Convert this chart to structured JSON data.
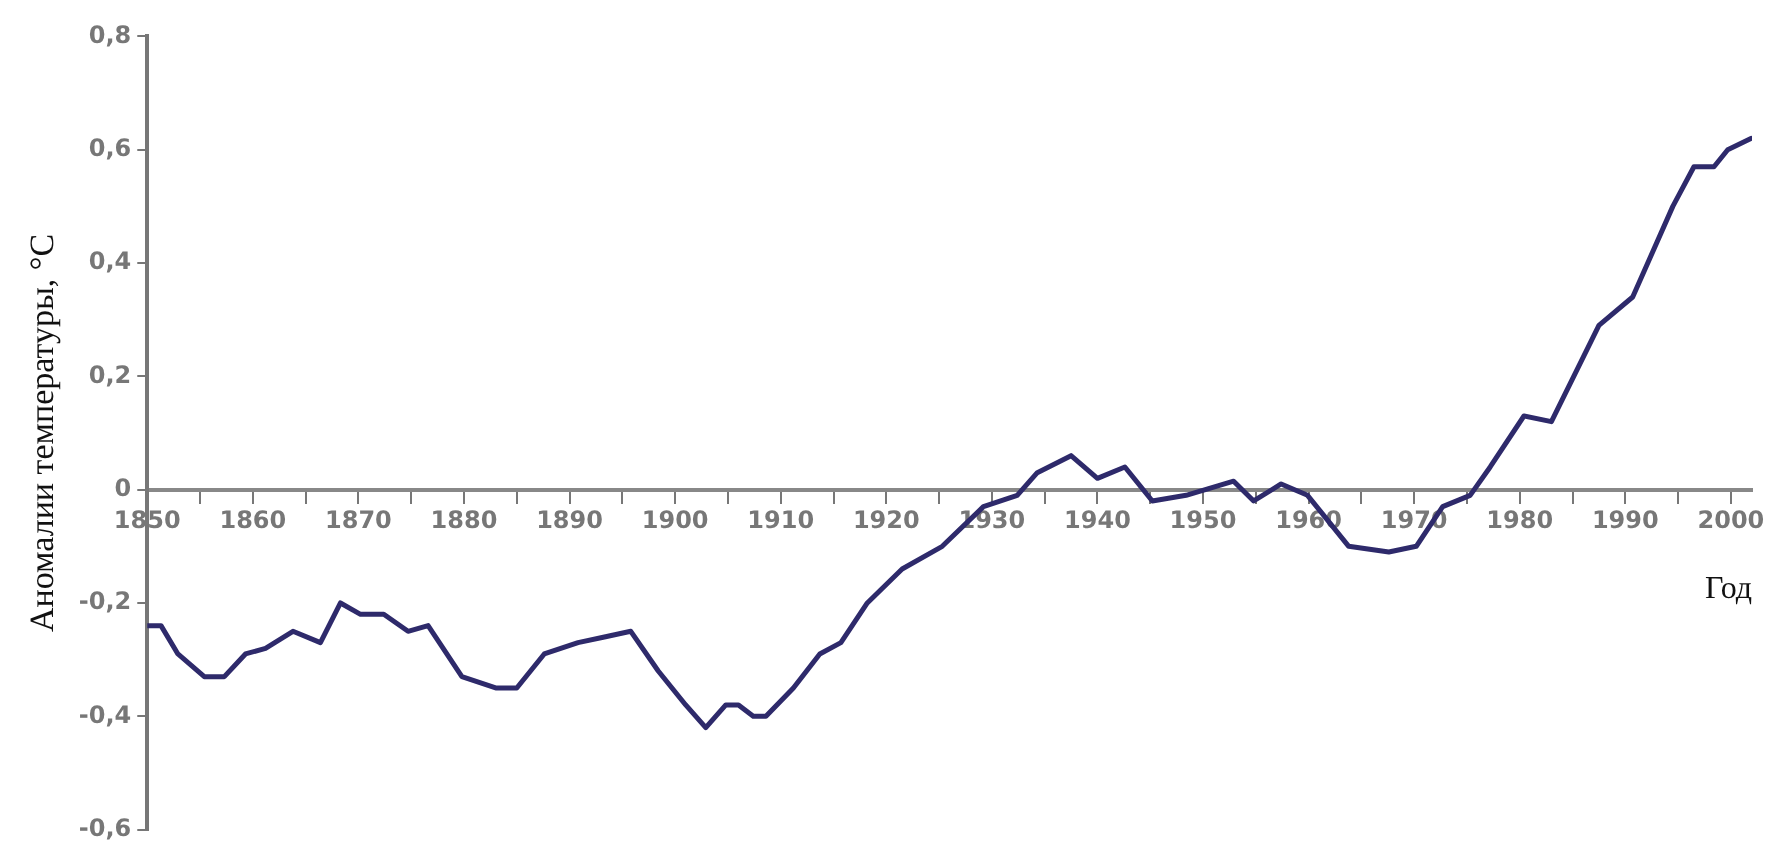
{
  "chart_data": {
    "type": "line",
    "xlabel": "Год",
    "ylabel": "Аномалии температуры, °C",
    "xlim": [
      1850,
      2002
    ],
    "xticks": [
      1850,
      {
        "value": 1855,
        "label": null
      },
      1860,
      {
        "value": 1865,
        "label": null
      },
      1870,
      {
        "value": 1875,
        "label": null
      },
      1880,
      {
        "value": 1885,
        "label": null
      },
      1890,
      {
        "value": 1895,
        "label": null
      },
      1900,
      {
        "value": 1905,
        "label": null
      },
      1910,
      {
        "value": 1915,
        "label": null
      },
      1920,
      {
        "value": 1925,
        "label": null
      },
      1930,
      {
        "value": 1935,
        "label": null
      },
      1940,
      {
        "value": 1945,
        "label": null
      },
      1950,
      {
        "value": 1955,
        "label": null
      },
      1960,
      {
        "value": 1965,
        "label": null
      },
      1970,
      {
        "value": 1975,
        "label": null
      },
      1980,
      {
        "value": 1985,
        "label": null
      },
      1990,
      {
        "value": 1995,
        "label": null
      },
      2000
    ],
    "ylim": [
      -0.6,
      0.8
    ],
    "yticks": [
      {
        "value": -0.6,
        "label": "-0,6"
      },
      {
        "value": -0.4,
        "label": "-0,4"
      },
      {
        "value": -0.2,
        "label": "-0,2"
      },
      0,
      {
        "value": 0.2,
        "label": "0,2"
      },
      {
        "value": 0.4,
        "label": "0,4"
      },
      {
        "value": 0.6,
        "label": "0,6"
      },
      {
        "value": 0.8,
        "label": "0,8"
      }
    ],
    "grid": false,
    "legend": false,
    "marker": "none",
    "line_style": "solid",
    "series": [
      {
        "color": "#2e2a6b",
        "x": [
          1850,
          1851.3,
          1852.9,
          1855.4,
          1857.3,
          1859.3,
          1861.2,
          1863.8,
          1866.4,
          1868.3,
          1870.2,
          1872.4,
          1874.7,
          1876.6,
          1879.8,
          1883,
          1885,
          1887.6,
          1890.8,
          1893.3,
          1895.8,
          1898.4,
          1901,
          1902.9,
          1904.8,
          1906,
          1907.4,
          1908.6,
          1911.2,
          1913.7,
          1915.7,
          1918.2,
          1921.5,
          1925.3,
          1929.2,
          1932.4,
          1934.3,
          1937.5,
          1940,
          1942.6,
          1945.2,
          1948.4,
          1952.9,
          1954.8,
          1957.4,
          1959.9,
          1963.8,
          1967.6,
          1970.2,
          1972.7,
          1975.3,
          1977.2,
          1980.4,
          1983,
          1987.5,
          1990.7,
          1994.5,
          1996.5,
          1998.4,
          1999.7,
          2001.9
        ],
        "values": [
          -0.24,
          -0.24,
          -0.29,
          -0.33,
          -0.33,
          -0.29,
          -0.28,
          -0.25,
          -0.27,
          -0.2,
          -0.22,
          -0.22,
          -0.25,
          -0.24,
          -0.33,
          -0.35,
          -0.35,
          -0.29,
          -0.27,
          -0.26,
          -0.25,
          -0.32,
          -0.38,
          -0.42,
          -0.38,
          -0.38,
          -0.4,
          -0.4,
          -0.35,
          -0.29,
          -0.27,
          -0.2,
          -0.14,
          -0.1,
          -0.03,
          -0.01,
          0.03,
          0.06,
          0.02,
          0.04,
          -0.02,
          -0.01,
          0.015,
          -0.02,
          0.01,
          -0.01,
          -0.1,
          -0.11,
          -0.1,
          -0.03,
          -0.01,
          0.04,
          0.13,
          0.12,
          0.29,
          0.34,
          0.5,
          0.57,
          0.57,
          0.6,
          0.62
        ]
      }
    ]
  }
}
